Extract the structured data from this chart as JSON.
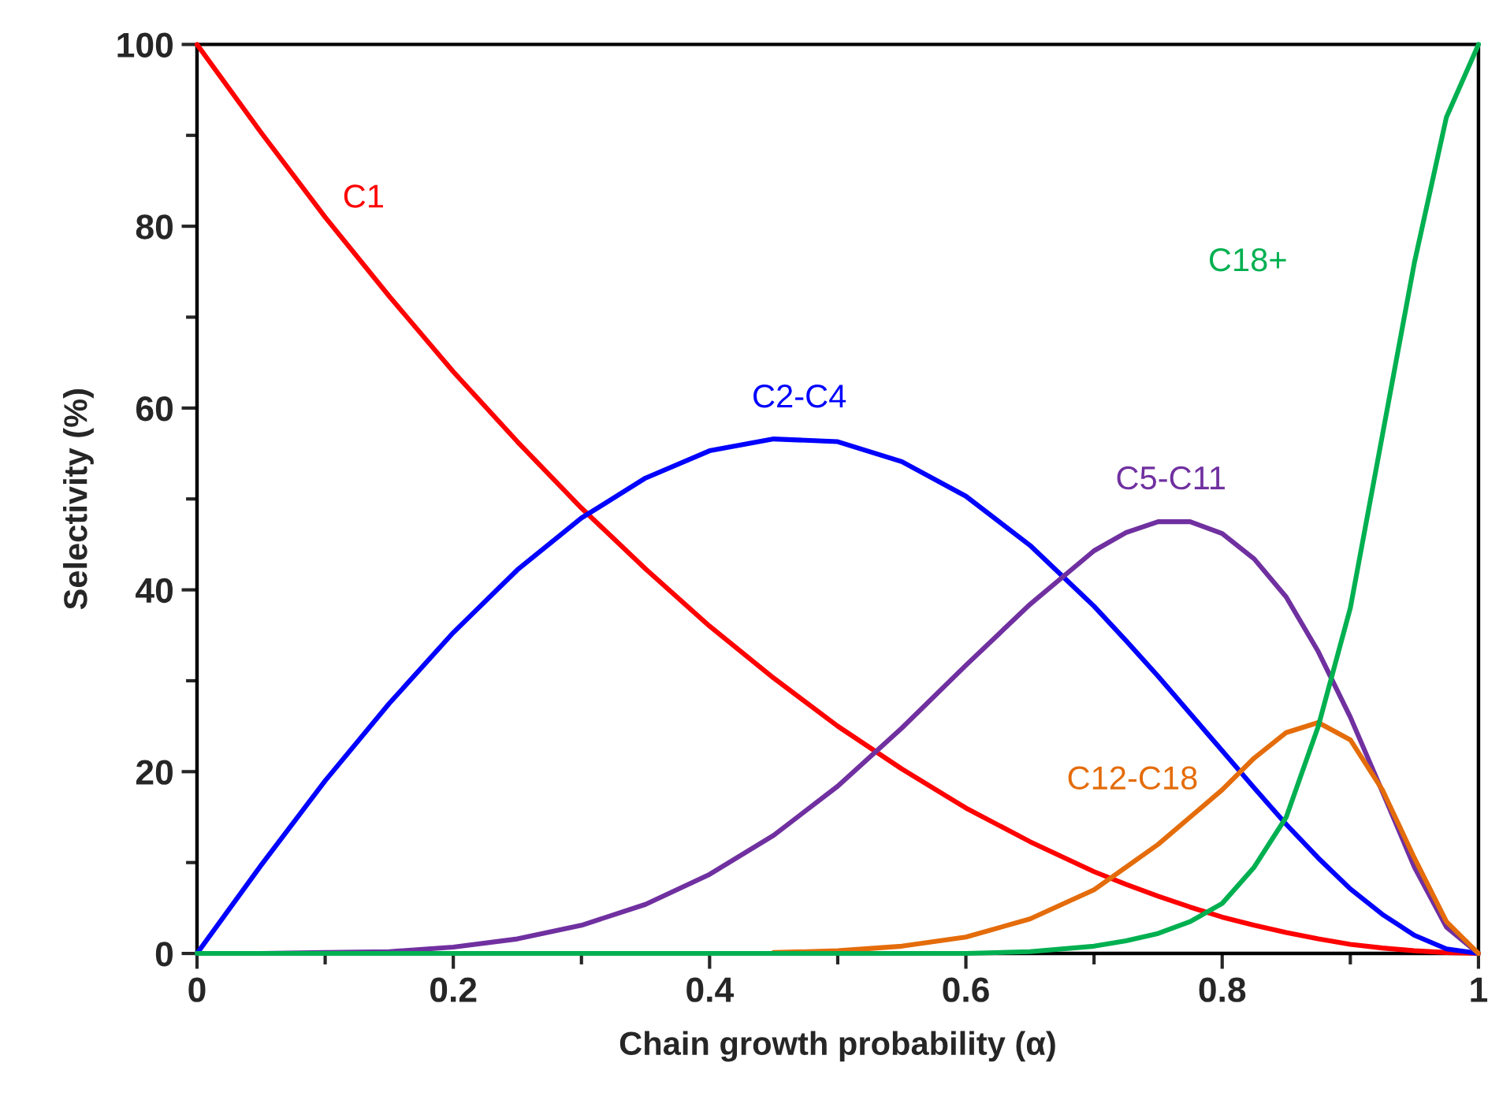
{
  "chart_data": {
    "type": "line",
    "xlabel": "Chain growth probability (α)",
    "ylabel": "Selectivity (%)",
    "x": [
      0,
      0.05,
      0.1,
      0.15,
      0.2,
      0.25,
      0.3,
      0.35,
      0.4,
      0.45,
      0.5,
      0.55,
      0.6,
      0.65,
      0.7,
      0.725,
      0.75,
      0.775,
      0.8,
      0.825,
      0.85,
      0.875,
      0.9,
      0.925,
      0.95,
      0.975,
      1
    ],
    "series": [
      {
        "name": "C1",
        "color": "#ff0000",
        "values": [
          100,
          90.3,
          81,
          72.3,
          64,
          56.3,
          49,
          42.3,
          36,
          30.3,
          25,
          20.3,
          16,
          12.3,
          9,
          7.6,
          6.3,
          5.1,
          4,
          3.1,
          2.3,
          1.6,
          1,
          0.6,
          0.3,
          0.1,
          0
        ]
      },
      {
        "name": "C2-C4",
        "color": "#0000ff",
        "values": [
          0,
          9.7,
          19,
          27.5,
          35.3,
          42.2,
          47.9,
          52.3,
          55.3,
          56.6,
          56.3,
          54.1,
          50.3,
          44.9,
          38.2,
          34.4,
          30.5,
          26.4,
          22.3,
          18.2,
          14.2,
          10.5,
          7.1,
          4.3,
          2,
          0.5,
          0
        ]
      },
      {
        "name": "C5-C11",
        "color": "#7030a0",
        "values": [
          0,
          0,
          0.1,
          0.2,
          0.7,
          1.6,
          3.1,
          5.4,
          8.7,
          13,
          18.4,
          24.8,
          31.7,
          38.4,
          44.3,
          46.3,
          47.5,
          47.5,
          46.2,
          43.4,
          39.2,
          33.2,
          26,
          17.8,
          9.5,
          2.9,
          0
        ]
      },
      {
        "name": "C12-C18",
        "color": "#e46c0a",
        "values": [
          null,
          null,
          null,
          null,
          null,
          null,
          null,
          null,
          null,
          0.1,
          0.3,
          0.8,
          1.8,
          3.8,
          7,
          9.5,
          12,
          15,
          18,
          21.5,
          24.3,
          25.4,
          23.5,
          18,
          10.5,
          3.5,
          0
        ]
      },
      {
        "name": "C18+",
        "color": "#00b050",
        "values": [
          0,
          0,
          0,
          0,
          0,
          0,
          0,
          0,
          0,
          0,
          0,
          0,
          0,
          0.2,
          0.8,
          1.4,
          2.2,
          3.5,
          5.5,
          9.5,
          15,
          25,
          38,
          57,
          76,
          92,
          100
        ]
      }
    ],
    "xlim": [
      0,
      1
    ],
    "ylim": [
      0,
      100
    ],
    "xticks": [
      0,
      {
        "value": 0.1,
        "label": null
      },
      0.2,
      {
        "value": 0.3,
        "label": null
      },
      0.4,
      {
        "value": 0.5,
        "label": null
      },
      0.6,
      {
        "value": 0.7,
        "label": null
      },
      0.8,
      {
        "value": 0.9,
        "label": null
      },
      1
    ],
    "yticks": [
      0,
      {
        "value": 10,
        "label": null
      },
      20,
      {
        "value": 30,
        "label": null
      },
      40,
      {
        "value": 50,
        "label": null
      },
      60,
      {
        "value": 70,
        "label": null
      },
      80,
      {
        "value": 90,
        "label": null
      },
      100
    ],
    "grid": false,
    "legend": false,
    "marker": "none",
    "line_style": "solid"
  }
}
